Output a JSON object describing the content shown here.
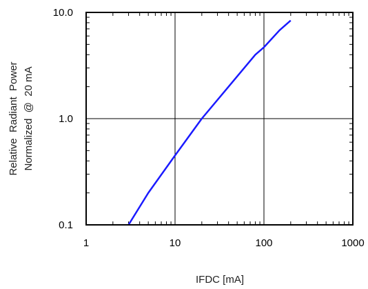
{
  "chart_data": {
    "type": "line",
    "title": "",
    "xlabel": "IFDC [mA]",
    "ylabel_line1": "Relative  Radiant  Power",
    "ylabel_line2": "Normalized  @  20 mA",
    "x_scale": "log",
    "y_scale": "log",
    "xlim": [
      1,
      1000
    ],
    "ylim": [
      0.1,
      10
    ],
    "x_ticks": [
      1,
      10,
      100,
      1000
    ],
    "x_tick_labels": [
      "1",
      "10",
      "100",
      "1000"
    ],
    "y_ticks": [
      0.1,
      1,
      10
    ],
    "y_tick_labels": [
      "0.1",
      "1.0",
      "10.0"
    ],
    "grid": true,
    "series": [
      {
        "color": "#1a1aff",
        "x": [
          3,
          5,
          10,
          20,
          50,
          80,
          100,
          150,
          200
        ],
        "y": [
          0.1,
          0.2,
          0.45,
          1.0,
          2.5,
          4.0,
          4.7,
          6.8,
          8.4
        ]
      }
    ]
  }
}
